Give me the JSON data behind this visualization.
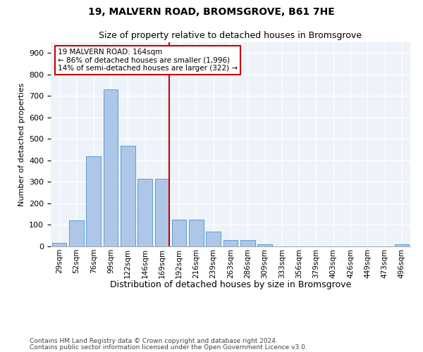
{
  "title1": "19, MALVERN ROAD, BROMSGROVE, B61 7HE",
  "title2": "Size of property relative to detached houses in Bromsgrove",
  "xlabel": "Distribution of detached houses by size in Bromsgrove",
  "ylabel": "Number of detached properties",
  "categories": [
    "29sqm",
    "52sqm",
    "76sqm",
    "99sqm",
    "122sqm",
    "146sqm",
    "169sqm",
    "192sqm",
    "216sqm",
    "239sqm",
    "263sqm",
    "286sqm",
    "309sqm",
    "333sqm",
    "356sqm",
    "379sqm",
    "403sqm",
    "426sqm",
    "449sqm",
    "473sqm",
    "496sqm"
  ],
  "values": [
    15,
    120,
    420,
    730,
    470,
    315,
    315,
    125,
    125,
    70,
    30,
    30,
    10,
    0,
    0,
    0,
    0,
    0,
    0,
    0,
    10
  ],
  "bar_color": "#aec6e8",
  "bar_edge_color": "#5a9fd4",
  "vline_x_index": 6,
  "vline_color": "#cc0000",
  "annotation_text": "19 MALVERN ROAD: 164sqm\n← 86% of detached houses are smaller (1,996)\n14% of semi-detached houses are larger (322) →",
  "annotation_box_color": "white",
  "annotation_box_edge_color": "#cc0000",
  "footer1": "Contains HM Land Registry data © Crown copyright and database right 2024.",
  "footer2": "Contains public sector information licensed under the Open Government Licence v3.0.",
  "ylim": [
    0,
    950
  ],
  "yticks": [
    0,
    100,
    200,
    300,
    400,
    500,
    600,
    700,
    800,
    900
  ],
  "background_color": "#eef2f9",
  "grid_color": "white",
  "title1_fontsize": 10,
  "title2_fontsize": 9,
  "ylabel_fontsize": 8,
  "xlabel_fontsize": 9,
  "tick_fontsize": 8,
  "annotation_fontsize": 7.5,
  "footer_fontsize": 6.5
}
